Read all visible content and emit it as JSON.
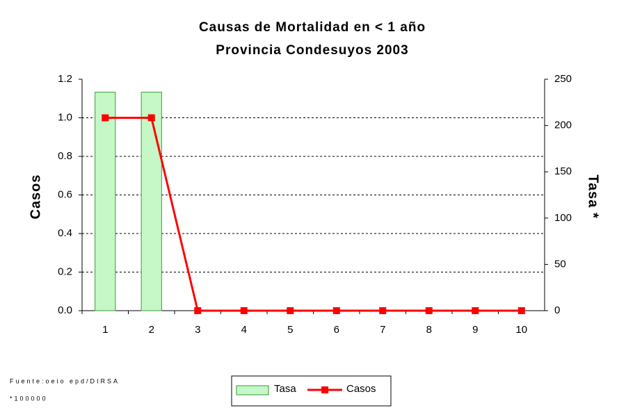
{
  "chart_data": {
    "type": "bar_line",
    "title": "Causas de Mortalidad en < 1 año",
    "subtitle": "Provincia Condesuyos 2003",
    "ylabel": "Casos",
    "y2label": "Tasa *",
    "categories": [
      "1",
      "2",
      "3",
      "4",
      "5",
      "6",
      "7",
      "8",
      "9",
      "10"
    ],
    "series": [
      {
        "name": "Tasa",
        "type": "bar",
        "axis": "y2",
        "color": "#c6f7c6",
        "edge": "#3a9a3a",
        "values": [
          236,
          236,
          0,
          0,
          0,
          0,
          0,
          0,
          0,
          0
        ]
      },
      {
        "name": "Casos",
        "type": "line",
        "axis": "y",
        "color": "#ff0000",
        "values": [
          1,
          1,
          0,
          0,
          0,
          0,
          0,
          0,
          0,
          0
        ]
      }
    ],
    "ylim": [
      0,
      1.2
    ],
    "yticks": [
      {
        "value": 0,
        "label": "0.0"
      },
      0.2,
      0.4,
      0.6,
      0.8,
      {
        "value": 1,
        "label": "1.0"
      },
      1.2
    ],
    "y2lim": [
      0,
      250
    ],
    "y2ticks": [
      0,
      50,
      100,
      150,
      200,
      250
    ],
    "grid": true,
    "legend": "bottom",
    "footnotes": [
      "Fuente:oeio epd/DIRSA",
      "*100000"
    ]
  }
}
